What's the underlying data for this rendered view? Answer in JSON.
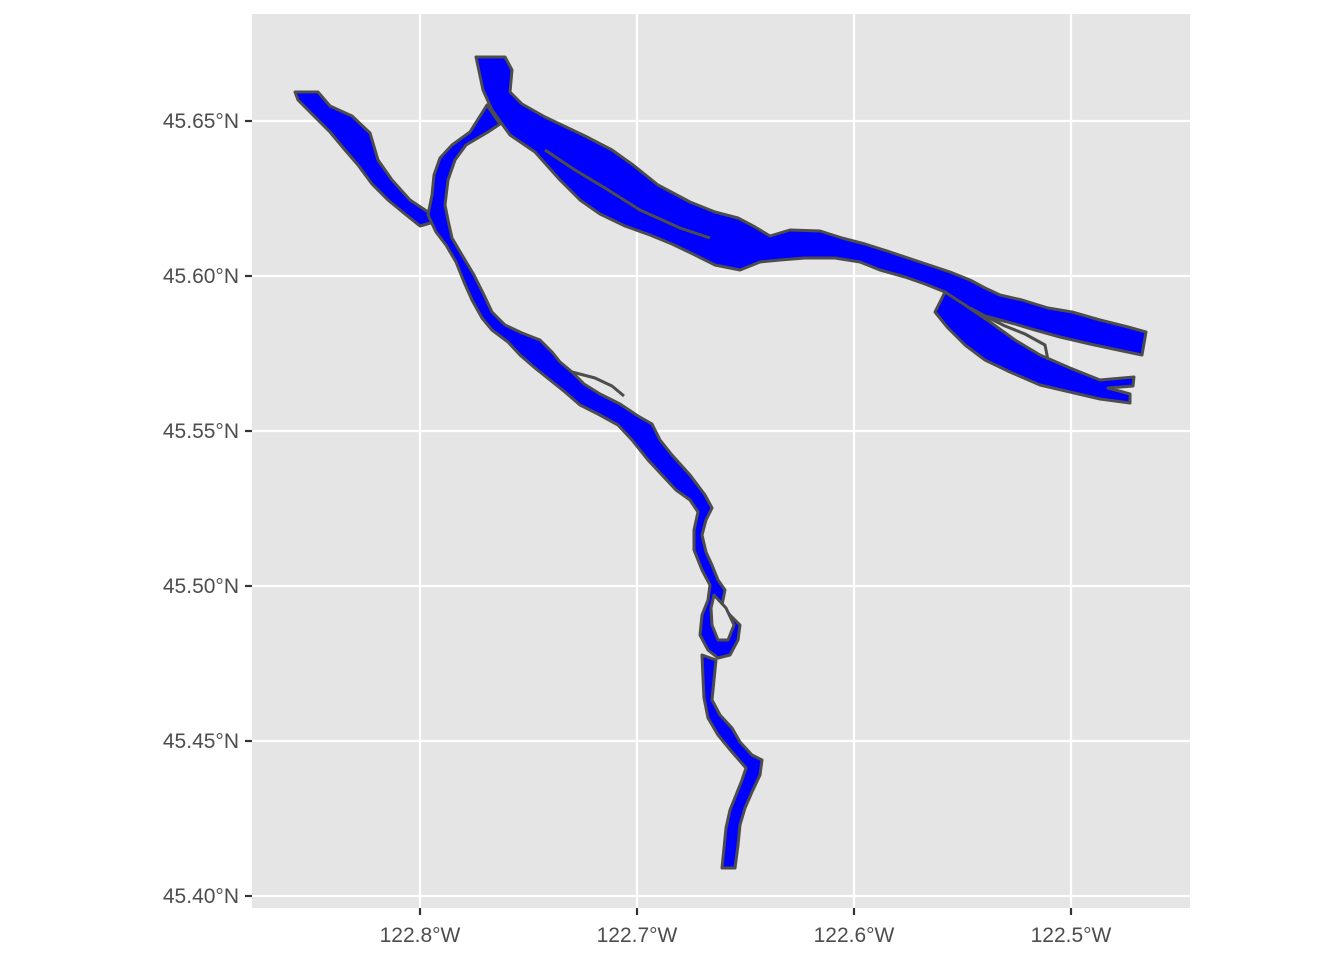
{
  "map": {
    "x_ticks": [
      {
        "lon": -122.8,
        "label": "122.8°W"
      },
      {
        "lon": -122.7,
        "label": "122.7°W"
      },
      {
        "lon": -122.6,
        "label": "122.6°W"
      },
      {
        "lon": -122.5,
        "label": "122.5°W"
      }
    ],
    "y_ticks": [
      {
        "lat": 45.65,
        "label": "45.65°N"
      },
      {
        "lat": 45.6,
        "label": "45.60°N"
      },
      {
        "lat": 45.55,
        "label": "45.55°N"
      },
      {
        "lat": 45.5,
        "label": "45.50°N"
      },
      {
        "lat": 45.45,
        "label": "45.45°N"
      },
      {
        "lat": 45.4,
        "label": "45.40°N"
      }
    ],
    "colors": {
      "panel_background": "#e5e5e5",
      "grid": "#ffffff",
      "water_fill": "#0000ff",
      "water_outline": "#4d4d4d",
      "axis_text": "#4d4d4d"
    }
  }
}
